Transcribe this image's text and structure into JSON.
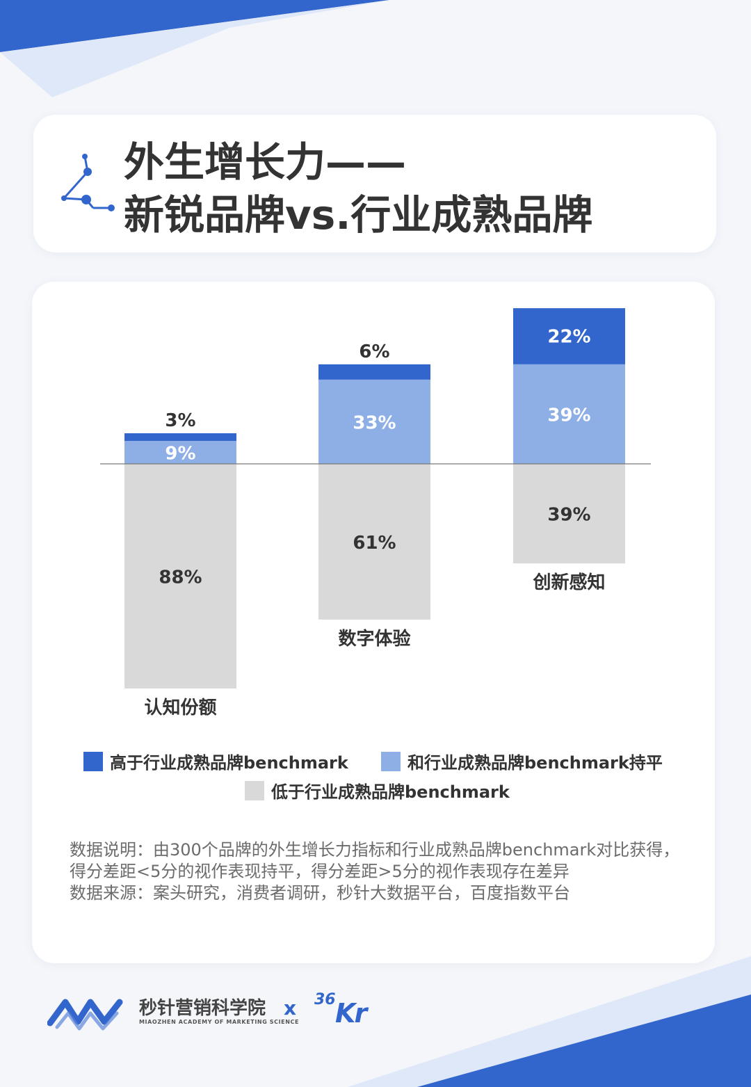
{
  "title": {
    "line1": "外生增长力——",
    "line2": "新锐品牌vs.行业成熟品牌"
  },
  "colors": {
    "higher": "#3366cc",
    "equal": "#8eaee6",
    "lower": "#d9d9d9",
    "accent": "#3366cc"
  },
  "chart_data": {
    "type": "bar",
    "stacked": true,
    "diverging": true,
    "categories": [
      "认知份额",
      "数字体验",
      "创新感知"
    ],
    "series": [
      {
        "name": "高于行业成熟品牌benchmark",
        "values": [
          3,
          6,
          22
        ],
        "labels": [
          "3%",
          "6%",
          "22%"
        ]
      },
      {
        "name": "和行业成熟品牌benchmark持平",
        "values": [
          9,
          33,
          39
        ],
        "labels": [
          "9%",
          "33%",
          "39%"
        ]
      },
      {
        "name": "低于行业成熟品牌benchmark",
        "values": [
          88,
          61,
          39
        ],
        "labels": [
          "88%",
          "61%",
          "39%"
        ]
      }
    ],
    "unit": "%",
    "baseline": 0,
    "legend": "bottom",
    "grid": false
  },
  "notes": {
    "line1": "数据说明：由300个品牌的外生增长力指标和行业成熟品牌benchmark对比获得，",
    "line2": "得分差距<5分的视作表现持平，得分差距>5分的视作表现存在差异",
    "line3": "数据来源：案头研究，消费者调研，秒针大数据平台，百度指数平台"
  },
  "footer": {
    "brand_name": "秒针营销科学院",
    "brand_subtitle": "MIAOZHEN ACADEMY OF MARKETING SCIENCE",
    "separator": "x",
    "partner_36": "36",
    "partner_kr": "Kr",
    "logo_icon": "miaozhen-logo-icon"
  }
}
